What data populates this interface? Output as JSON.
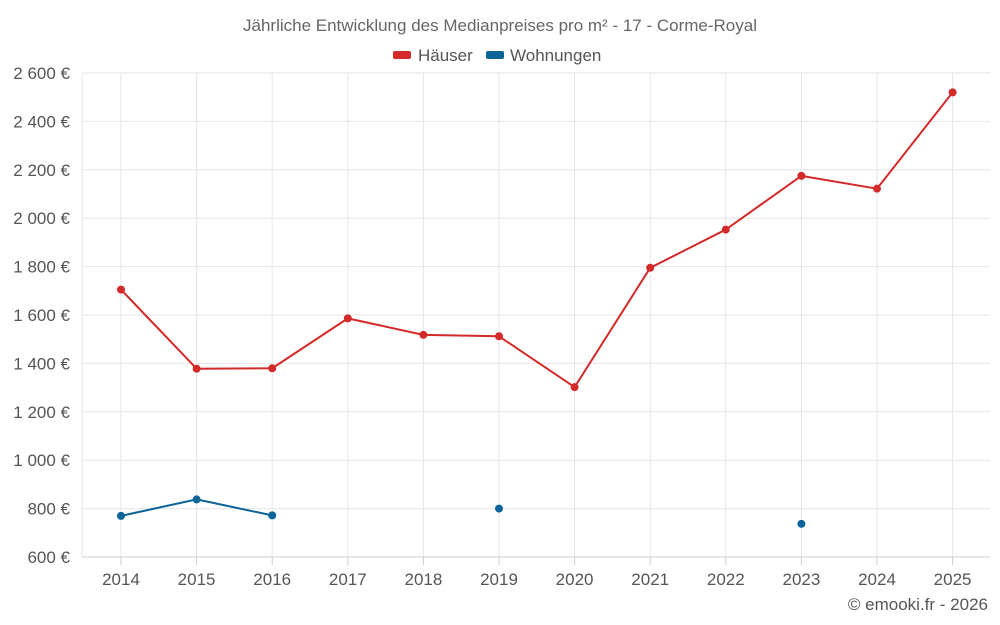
{
  "chart_data": {
    "type": "line",
    "title": "Jährliche Entwicklung des Medianpreises pro m² - 17 - Corme-Royal",
    "categories": [
      "2014",
      "2015",
      "2016",
      "2017",
      "2018",
      "2019",
      "2020",
      "2021",
      "2022",
      "2023",
      "2024",
      "2025"
    ],
    "series": [
      {
        "name": "Häuser",
        "color": "#d32a2a",
        "values": [
          1705,
          1378,
          1380,
          1586,
          1518,
          1512,
          1302,
          1795,
          1953,
          2175,
          2122,
          2520
        ]
      },
      {
        "name": "Wohnungen",
        "color": "#0d6498",
        "values": [
          770,
          838,
          772,
          null,
          null,
          800,
          null,
          null,
          null,
          737,
          null,
          null
        ]
      }
    ],
    "ylim": [
      600,
      2600
    ],
    "yticks": [
      600,
      800,
      1000,
      1200,
      1400,
      1600,
      1800,
      2000,
      2200,
      2400,
      2600
    ],
    "ytick_labels": [
      "600 €",
      "800 €",
      "1 000 €",
      "1 200 €",
      "1 400 €",
      "1 600 €",
      "1 800 €",
      "2 000 €",
      "2 200 €",
      "2 400 €",
      "2 600 €"
    ],
    "xlabel": "",
    "ylabel": "",
    "grid": true,
    "legend_position": "top-center"
  },
  "credit": "© emooki.fr - 2026"
}
